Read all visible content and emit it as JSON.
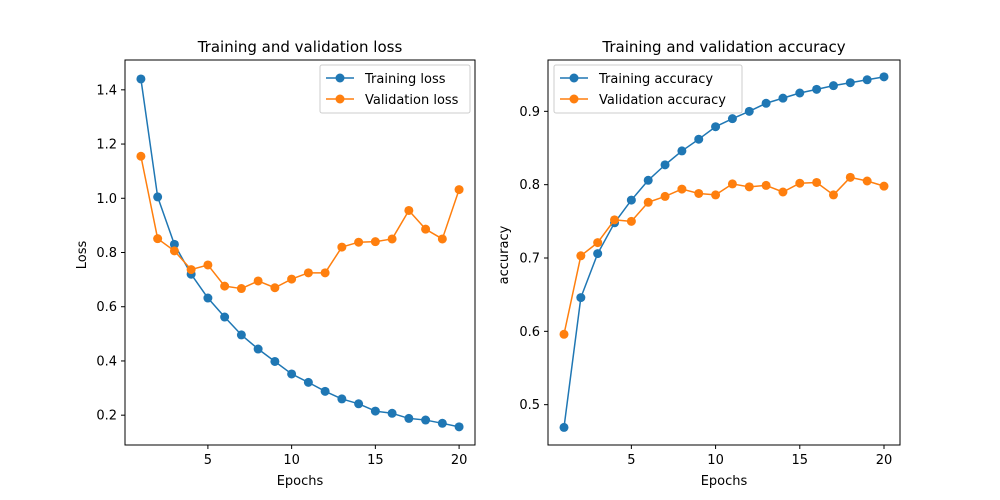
{
  "chart_data": [
    {
      "type": "line",
      "title": "Training and validation loss",
      "xlabel": "Epochs",
      "ylabel": "Loss",
      "xlim": [
        0.05,
        20.95
      ],
      "ylim": [
        0.09,
        1.51
      ],
      "xticks": [
        5,
        10,
        15,
        20
      ],
      "yticks": [
        0.2,
        0.4,
        0.6,
        0.8,
        1.0,
        1.2,
        1.4
      ],
      "ytick_labels": [
        "0.2",
        "0.4",
        "0.6",
        "0.8",
        "1.0",
        "1.2",
        "1.4"
      ],
      "grid": false,
      "legend_position": "top-right",
      "x": [
        1,
        2,
        3,
        4,
        5,
        6,
        7,
        8,
        9,
        10,
        11,
        12,
        13,
        14,
        15,
        16,
        17,
        18,
        19,
        20
      ],
      "series": [
        {
          "name": "Training loss",
          "color": "#1f77b4",
          "values": [
            1.44,
            1.005,
            0.83,
            0.72,
            0.632,
            0.562,
            0.496,
            0.444,
            0.398,
            0.352,
            0.321,
            0.288,
            0.26,
            0.242,
            0.215,
            0.207,
            0.188,
            0.182,
            0.17,
            0.157
          ]
        },
        {
          "name": "Validation loss",
          "color": "#ff7f0e",
          "values": [
            1.155,
            0.851,
            0.806,
            0.737,
            0.754,
            0.676,
            0.667,
            0.695,
            0.67,
            0.702,
            0.725,
            0.725,
            0.82,
            0.838,
            0.84,
            0.85,
            0.955,
            0.886,
            0.85,
            1.032
          ]
        }
      ]
    },
    {
      "type": "line",
      "title": "Training and validation accuracy",
      "xlabel": "Epochs",
      "ylabel": "accuracy",
      "xlim": [
        0.05,
        20.95
      ],
      "ylim": [
        0.445,
        0.97
      ],
      "xticks": [
        5,
        10,
        15,
        20
      ],
      "yticks": [
        0.5,
        0.6,
        0.7,
        0.8,
        0.9
      ],
      "ytick_labels": [
        "0.5",
        "0.6",
        "0.7",
        "0.8",
        "0.9"
      ],
      "grid": false,
      "legend_position": "top-left",
      "x": [
        1,
        2,
        3,
        4,
        5,
        6,
        7,
        8,
        9,
        10,
        11,
        12,
        13,
        14,
        15,
        16,
        17,
        18,
        19,
        20
      ],
      "series": [
        {
          "name": "Training accuracy",
          "color": "#1f77b4",
          "values": [
            0.469,
            0.646,
            0.706,
            0.748,
            0.779,
            0.806,
            0.827,
            0.846,
            0.862,
            0.879,
            0.89,
            0.9,
            0.911,
            0.918,
            0.925,
            0.93,
            0.935,
            0.939,
            0.943,
            0.947
          ]
        },
        {
          "name": "Validation accuracy",
          "color": "#ff7f0e",
          "values": [
            0.596,
            0.703,
            0.721,
            0.752,
            0.75,
            0.776,
            0.784,
            0.794,
            0.788,
            0.786,
            0.801,
            0.797,
            0.799,
            0.79,
            0.802,
            0.803,
            0.786,
            0.81,
            0.805,
            0.798
          ]
        }
      ]
    }
  ]
}
